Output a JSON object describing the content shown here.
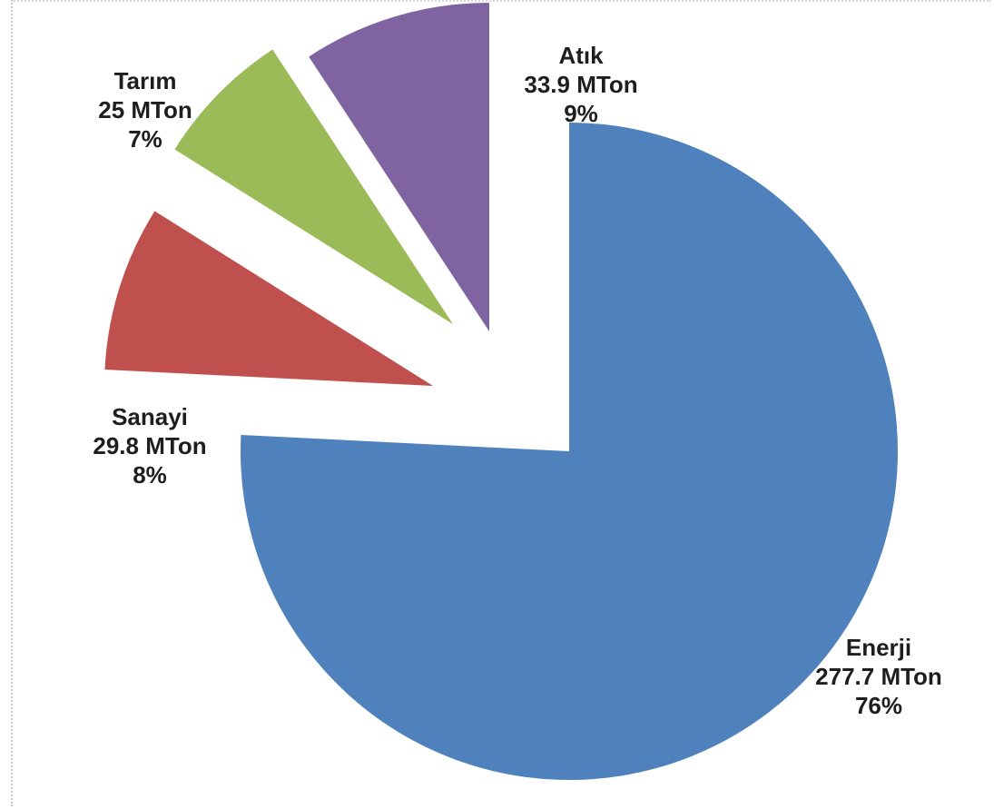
{
  "chart_data": {
    "type": "pie",
    "title": "",
    "unit": "MTon",
    "slices": [
      {
        "name": "Enerji",
        "value": 277.7,
        "value_label": "277.7 MTon",
        "percent": 76,
        "percent_label": "76%",
        "color": "#4F81BD"
      },
      {
        "name": "Sanayi",
        "value": 29.8,
        "value_label": "29.8 MTon",
        "percent": 8,
        "percent_label": "8%",
        "color": "#C0504D"
      },
      {
        "name": "Tarım",
        "value": 25,
        "value_label": "25 MTon",
        "percent": 7,
        "percent_label": "7%",
        "color": "#9BBB59"
      },
      {
        "name": "Atık",
        "value": 33.9,
        "value_label": "33.9 MTon",
        "percent": 9,
        "percent_label": "9%",
        "color": "#8064A2"
      }
    ],
    "exploded": true,
    "legend": "none"
  }
}
